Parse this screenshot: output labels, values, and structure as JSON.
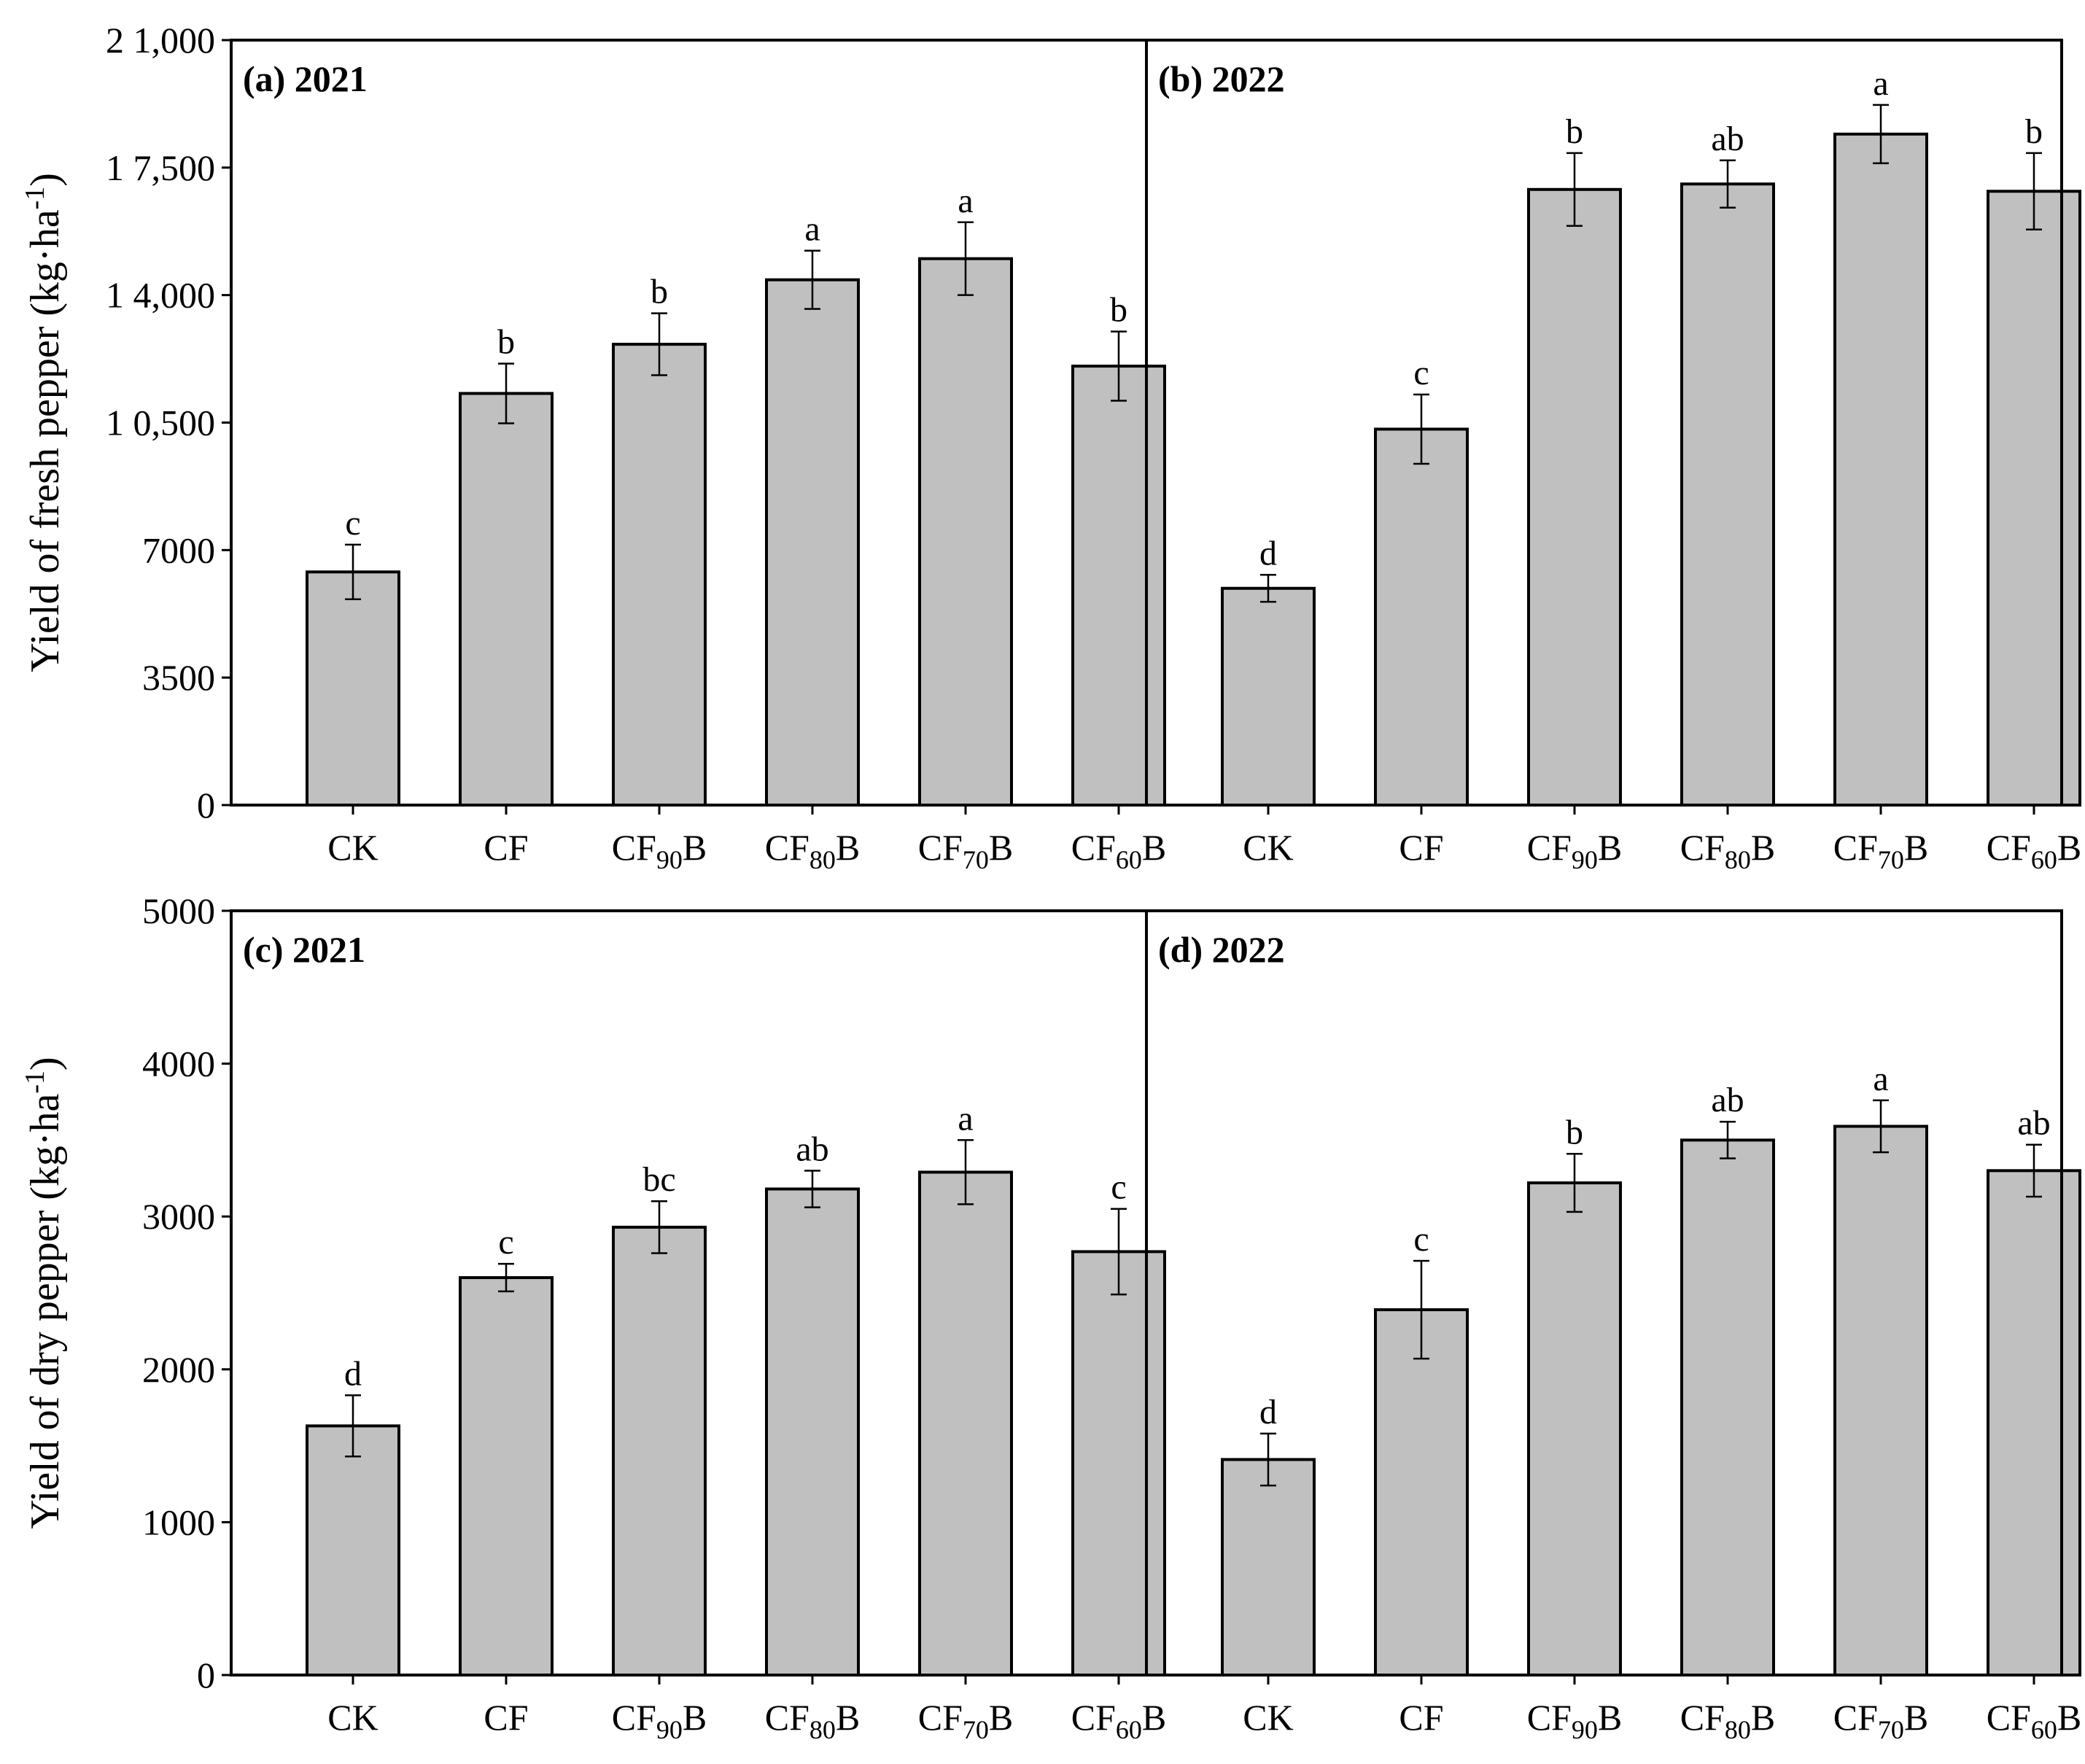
{
  "colors": {
    "bar_fill": "#c0c0c0",
    "stroke": "#000000",
    "background": "#ffffff"
  },
  "chart_data": [
    {
      "type": "bar",
      "panel_title": "(a) 2021",
      "categories": [
        "CK",
        "CF",
        "CF90B",
        "CF80B",
        "CF70B",
        "CF60B"
      ],
      "values": [
        6400,
        11300,
        12650,
        14420,
        15000,
        12050
      ],
      "errors": [
        750,
        820,
        850,
        800,
        1000,
        950
      ],
      "significance": [
        "c",
        "b",
        "b",
        "a",
        "a",
        "b"
      ],
      "ylabel": "Yield of fresh pepper (kg·ha-1)",
      "ylim": [
        0,
        21000
      ],
      "yticks": [
        0,
        3500,
        7000,
        10500,
        14000,
        17500,
        21000
      ],
      "ytick_labels": [
        "0",
        "3500",
        "7000",
        "1 0,500",
        "1 4,000",
        "1 7,500",
        "2 1,000"
      ]
    },
    {
      "type": "bar",
      "panel_title": "(b) 2022",
      "categories": [
        "CK",
        "CF",
        "CF90B",
        "CF80B",
        "CF70B",
        "CF60B"
      ],
      "values": [
        5950,
        10320,
        16900,
        17050,
        18420,
        16850
      ],
      "errors": [
        370,
        950,
        1000,
        650,
        800,
        1050
      ],
      "significance": [
        "d",
        "c",
        "b",
        "ab",
        "a",
        "b"
      ],
      "ylim": [
        0,
        21000
      ]
    },
    {
      "type": "bar",
      "panel_title": "(c) 2021",
      "categories": [
        "CK",
        "CF",
        "CF90B",
        "CF80B",
        "CF70B",
        "CF60B"
      ],
      "values": [
        1630,
        2600,
        2930,
        3180,
        3290,
        2770
      ],
      "errors": [
        200,
        90,
        170,
        120,
        210,
        280
      ],
      "significance": [
        "d",
        "c",
        "bc",
        "ab",
        "a",
        "c"
      ],
      "ylabel": "Yield of dry pepper (kg·ha-1)",
      "ylim": [
        0,
        5000
      ],
      "yticks": [
        0,
        1000,
        2000,
        3000,
        4000,
        5000
      ],
      "ytick_labels": [
        "0",
        "1000",
        "2000",
        "3000",
        "4000",
        "5000"
      ]
    },
    {
      "type": "bar",
      "panel_title": "(d) 2022",
      "categories": [
        "CK",
        "CF",
        "CF90B",
        "CF80B",
        "CF70B",
        "CF60B"
      ],
      "values": [
        1410,
        2390,
        3220,
        3500,
        3590,
        3300
      ],
      "errors": [
        170,
        320,
        190,
        120,
        170,
        170
      ],
      "significance": [
        "d",
        "c",
        "b",
        "ab",
        "a",
        "ab"
      ],
      "ylim": [
        0,
        5000
      ]
    }
  ],
  "category_parts": [
    {
      "main": "CK",
      "sub": "",
      "suffix": ""
    },
    {
      "main": "CF",
      "sub": "",
      "suffix": ""
    },
    {
      "main": "CF",
      "sub": "90",
      "suffix": "B"
    },
    {
      "main": "CF",
      "sub": "80",
      "suffix": "B"
    },
    {
      "main": "CF",
      "sub": "70",
      "suffix": "B"
    },
    {
      "main": "CF",
      "sub": "60",
      "suffix": "B"
    }
  ],
  "ylabels": [
    {
      "main": "Yield of fresh pepper (kg·ha",
      "sup": "-1",
      "close": ")"
    },
    {
      "main": "Yield of dry pepper (kg·ha",
      "sup": "-1",
      "close": ")"
    }
  ]
}
